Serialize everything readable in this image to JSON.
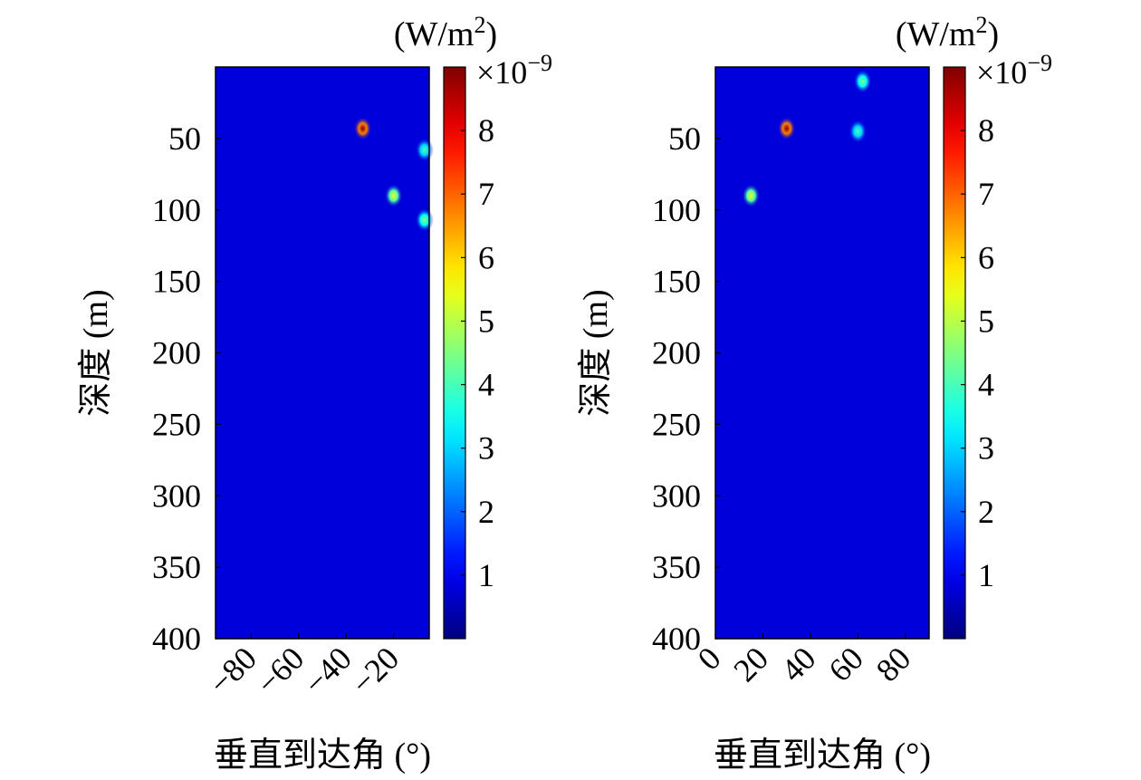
{
  "chart_data": [
    {
      "type": "heatmap",
      "title": "",
      "xlabel": "垂直到达角 (°)",
      "ylabel": "深度 (m)",
      "xlim": [
        -95,
        -5
      ],
      "ylim": [
        0,
        400
      ],
      "y_inverted": true,
      "xticks": [
        -80,
        -60,
        -40,
        -20
      ],
      "xtick_labels": [
        "−80",
        "−60",
        "−40",
        "−20"
      ],
      "yticks": [
        50,
        100,
        150,
        200,
        250,
        300,
        350,
        400
      ],
      "colorbar": {
        "label": "(W/m²)",
        "label_prefix": "(W/m",
        "label_sup": "2",
        "label_suffix": ")",
        "multiplier_prefix": "×10",
        "multiplier_exp": "−9",
        "range": [
          0,
          9
        ],
        "ticks": [
          1,
          2,
          3,
          4,
          5,
          6,
          7,
          8
        ],
        "colormap": "jet"
      },
      "background_level": 0.8,
      "peaks": [
        {
          "x": -33,
          "y": 43,
          "value": 9.0
        },
        {
          "x": -20,
          "y": 90,
          "value": 5.5
        },
        {
          "x": -7,
          "y": 107,
          "value": 4.5
        },
        {
          "x": -7,
          "y": 58,
          "value": 4.0
        }
      ]
    },
    {
      "type": "heatmap",
      "title": "",
      "xlabel": "垂直到达角 (°)",
      "ylabel": "深度 (m)",
      "xlim": [
        0,
        90
      ],
      "ylim": [
        0,
        400
      ],
      "y_inverted": true,
      "xticks": [
        0,
        20,
        40,
        60,
        80
      ],
      "xtick_labels": [
        "0",
        "20",
        "40",
        "60",
        "80"
      ],
      "yticks": [
        50,
        100,
        150,
        200,
        250,
        300,
        350,
        400
      ],
      "colorbar": {
        "label": "(W/m²)",
        "label_prefix": "(W/m",
        "label_sup": "2",
        "label_suffix": ")",
        "multiplier_prefix": "×10",
        "multiplier_exp": "−9",
        "range": [
          0,
          9
        ],
        "ticks": [
          1,
          2,
          3,
          4,
          5,
          6,
          7,
          8
        ],
        "colormap": "jet"
      },
      "background_level": 0.8,
      "peaks": [
        {
          "x": 30,
          "y": 43,
          "value": 9.0
        },
        {
          "x": 15,
          "y": 90,
          "value": 5.5
        },
        {
          "x": 62,
          "y": 10,
          "value": 4.5
        },
        {
          "x": 60,
          "y": 45,
          "value": 4.0
        }
      ]
    }
  ]
}
